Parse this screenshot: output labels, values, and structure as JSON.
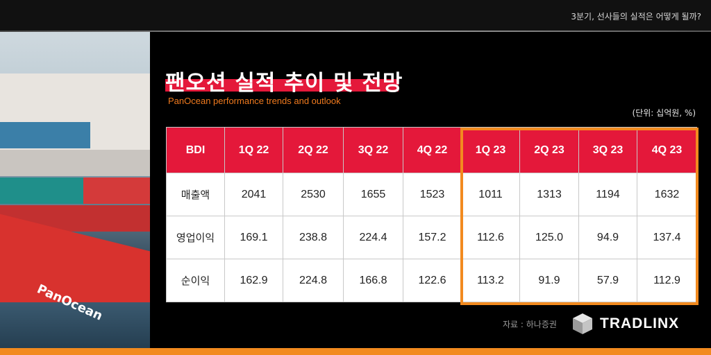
{
  "header": {
    "topbar_text": "3분기, 선사들의 실적은 어떻게 될까?"
  },
  "hero": {
    "ship_name": "PanOcean"
  },
  "slide": {
    "title": "팬오션 실적 추이 및 전망",
    "subtitle": "PanOcean performance trends and outlook",
    "unit": "(단위: 십억원, %)"
  },
  "table": {
    "headers": [
      "BDI",
      "1Q 22",
      "2Q 22",
      "3Q 22",
      "4Q 22",
      "1Q 23",
      "2Q 23",
      "3Q 23",
      "4Q 23"
    ],
    "rows": [
      {
        "label": "매출액",
        "values": [
          "2041",
          "2530",
          "1655",
          "1523",
          "1011",
          "1313",
          "1194",
          "1632"
        ]
      },
      {
        "label": "영업이익",
        "values": [
          "169.1",
          "238.8",
          "224.4",
          "157.2",
          "112.6",
          "125.0",
          "94.9",
          "137.4"
        ]
      },
      {
        "label": "순이익",
        "values": [
          "162.9",
          "224.8",
          "166.8",
          "122.6",
          "113.2",
          "91.9",
          "57.9",
          "112.9"
        ]
      }
    ]
  },
  "footer": {
    "source": "자료 : 하나증권",
    "logo_text": "TRADLINX"
  },
  "colors": {
    "accent_red": "#e4183a",
    "accent_orange": "#f28a1f",
    "background": "#000000"
  },
  "icons": {
    "logo": "cube-logo-icon"
  }
}
